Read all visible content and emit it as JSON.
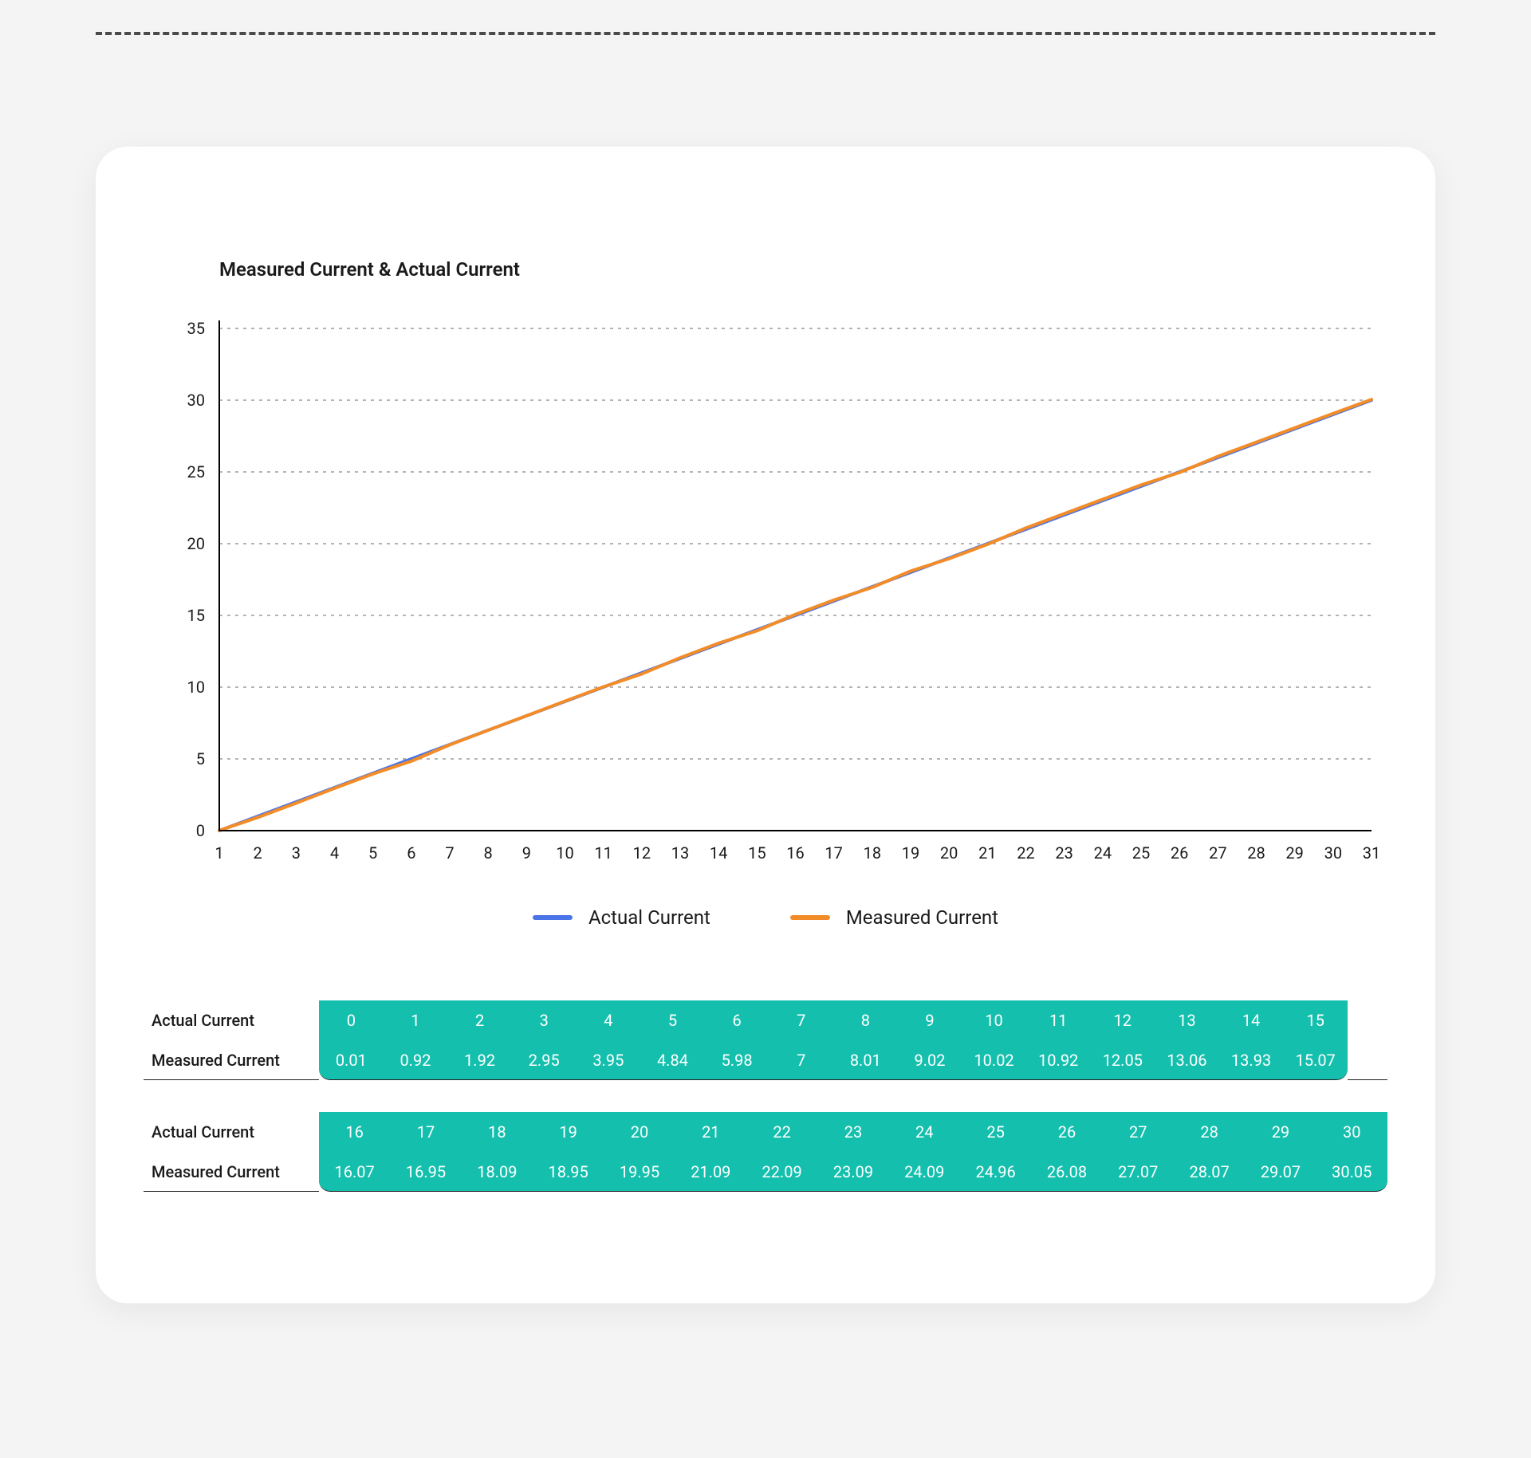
{
  "page": {
    "background_color": "#f4f4f5",
    "card_background": "#ffffff",
    "dash_color": "#4a4a4a"
  },
  "chart": {
    "type": "line",
    "title": "Measured Current & Actual Current",
    "title_fontsize": 24,
    "axis_label_fontsize": 20,
    "x_ticks": [
      "1",
      "2",
      "3",
      "4",
      "5",
      "6",
      "7",
      "8",
      "9",
      "10",
      "11",
      "12",
      "13",
      "14",
      "15",
      "16",
      "17",
      "18",
      "19",
      "20",
      "21",
      "22",
      "23",
      "24",
      "25",
      "26",
      "27",
      "28",
      "29",
      "30",
      "31"
    ],
    "y_ticks": [
      0,
      5,
      10,
      15,
      20,
      25,
      30,
      35
    ],
    "ylim": [
      0,
      35
    ],
    "xlim": [
      1,
      31
    ],
    "grid_color": "#888888",
    "grid_dash": "4 6",
    "axis_color": "#000000",
    "line_width": 4,
    "series": [
      {
        "name": "Actual Current",
        "color": "#4a74e8",
        "values": [
          0,
          1,
          2,
          3,
          4,
          5,
          6,
          7,
          8,
          9,
          10,
          11,
          12,
          13,
          14,
          15,
          16,
          17,
          18,
          19,
          20,
          21,
          22,
          23,
          24,
          25,
          26,
          27,
          28,
          29,
          30
        ]
      },
      {
        "name": "Measured Current",
        "color": "#f28c28",
        "values": [
          0.01,
          0.92,
          1.92,
          2.95,
          3.95,
          4.84,
          5.98,
          7,
          8.01,
          9.02,
          10.02,
          10.92,
          12.05,
          13.06,
          13.93,
          15.07,
          16.07,
          16.95,
          18.09,
          18.95,
          19.95,
          21.09,
          22.09,
          23.09,
          24.09,
          24.96,
          26.08,
          27.07,
          28.07,
          29.07,
          30.05
        ]
      }
    ],
    "legend": {
      "items": [
        {
          "label": "Actual Current",
          "color": "#4a74e8"
        },
        {
          "label": "Measured Current",
          "color": "#f28c28"
        }
      ],
      "fontsize": 24
    }
  },
  "table": {
    "cell_background": "#14c0ad",
    "cell_text_color": "#ffffff",
    "label_text_color": "#1a1a1a",
    "border_color": "#222222",
    "fontsize": 20,
    "row_labels": [
      "Actual Current",
      "Measured Current"
    ],
    "block1": {
      "actual": [
        "0",
        "1",
        "2",
        "3",
        "4",
        "5",
        "6",
        "7",
        "8",
        "9",
        "10",
        "11",
        "12",
        "13",
        "14",
        "15"
      ],
      "measured": [
        "0.01",
        "0.92",
        "1.92",
        "2.95",
        "3.95",
        "4.84",
        "5.98",
        "7",
        "8.01",
        "9.02",
        "10.02",
        "10.92",
        "12.05",
        "13.06",
        "13.93",
        "15.07"
      ]
    },
    "block2": {
      "actual": [
        "16",
        "17",
        "18",
        "19",
        "20",
        "21",
        "22",
        "23",
        "24",
        "25",
        "26",
        "27",
        "28",
        "29",
        "30"
      ],
      "measured": [
        "16.07",
        "16.95",
        "18.09",
        "18.95",
        "19.95",
        "21.09",
        "22.09",
        "23.09",
        "24.09",
        "24.96",
        "26.08",
        "27.07",
        "28.07",
        "29.07",
        "30.05"
      ]
    }
  }
}
